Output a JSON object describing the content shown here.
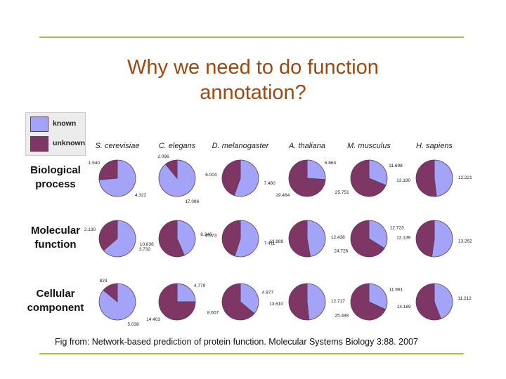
{
  "slide": {
    "title_line1": "Why we need to do function",
    "title_line2": "annotation?",
    "caption": "Fig from: Network-based prediction of protein function. Molecular Systems Biology 3:88. 2007",
    "rule_color": "#a3c24a",
    "title_color": "#9a4a12"
  },
  "legend": {
    "items": [
      {
        "label": "known",
        "color": "#a3a3f7"
      },
      {
        "label": "unknown",
        "color": "#7e3764"
      }
    ]
  },
  "chart_data": {
    "type": "pie",
    "species": [
      "S. cerevisiae",
      "C. elegans",
      "D. melanogaster",
      "A. thaliana",
      "M. musculus",
      "H. sapiens"
    ],
    "categories": [
      "Biological process",
      "Molecular function",
      "Cellular component"
    ],
    "category_lines": [
      [
        "Biological",
        "process"
      ],
      [
        "Molecular",
        "function"
      ],
      [
        "Cellular",
        "component"
      ]
    ],
    "colors": {
      "known": "#a3a3f7",
      "unknown": "#7e3764"
    },
    "pies": [
      [
        {
          "known": 4.322,
          "unknown": 1.54,
          "known_label": "4.322",
          "unknown_label": "1.540"
        },
        {
          "known": 17.086,
          "unknown": 2.096,
          "known_label": "17.086",
          "unknown_label": "2.096"
        },
        {
          "known": 7.48,
          "unknown": 6.004,
          "known_label": "7.480",
          "unknown_label": "6.004"
        },
        {
          "known": 6.863,
          "unknown": 19.464,
          "known_label": "6.863",
          "unknown_label": "19.464"
        },
        {
          "known": 11.698,
          "unknown": 25.751,
          "known_label": "11.698",
          "unknown_label": "25.751"
        },
        {
          "known": 12.221,
          "unknown": 13.18,
          "known_label": "12.221",
          "unknown_label": "13.180"
        }
      ],
      [
        {
          "known": 3.732,
          "unknown": 2.13,
          "known_label": "3.732",
          "unknown_label": "2.130"
        },
        {
          "known": 8.346,
          "unknown": 10.836,
          "known_label": "8.346",
          "unknown_label": "10.836"
        },
        {
          "known": 7.411,
          "unknown": 6.073,
          "known_label": "7.411",
          "unknown_label": "6.073"
        },
        {
          "known": 12.438,
          "unknown": 13.889,
          "known_label": "12.438",
          "unknown_label": "13.889"
        },
        {
          "known": 12.723,
          "unknown": 24.726,
          "known_label": "12.723",
          "unknown_label": "24.726"
        },
        {
          "known": 13.262,
          "unknown": 12.139,
          "known_label": "13.262",
          "unknown_label": "12.139"
        }
      ],
      [
        {
          "known": 5.038,
          "unknown": 824,
          "known_label": "5.038",
          "unknown_label": "824"
        },
        {
          "known": 4.779,
          "unknown": 14.403,
          "known_label": "4.779",
          "unknown_label": "14.403"
        },
        {
          "known": 4.877,
          "unknown": 8.607,
          "known_label": "4.877",
          "unknown_label": "8.607"
        },
        {
          "known": 12.717,
          "unknown": 13.61,
          "known_label": "12.717",
          "unknown_label": "13.610"
        },
        {
          "known": 11.961,
          "unknown": 25.488,
          "known_label": "11.961",
          "unknown_label": "25.488"
        },
        {
          "known": 11.212,
          "unknown": 14.189,
          "known_label": "11.212",
          "unknown_label": "14.189"
        }
      ]
    ],
    "cellular_component_unknown_fraction_override": {
      "S. cerevisiae": 0.14
    }
  }
}
